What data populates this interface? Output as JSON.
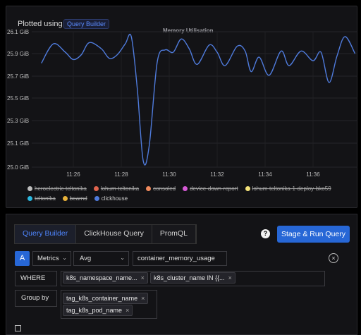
{
  "chart_panel": {
    "plotted_using_label": "Plotted using",
    "plotted_using_chip": "Query Builder"
  },
  "chart_data": {
    "type": "line",
    "title": "Memory Utilisation",
    "xlabel": "",
    "ylabel": "",
    "y_ticks": [
      "26.1 GiB",
      "25.9 GiB",
      "25.7 GiB",
      "25.5 GiB",
      "25.3 GiB",
      "25.1 GiB",
      "25.0 GiB"
    ],
    "x_ticks": [
      "11:26",
      "11:28",
      "11:30",
      "11:32",
      "11:34",
      "11:36"
    ],
    "ylim": [
      25.0,
      26.12
    ],
    "grid": true,
    "series": [
      {
        "name": "clickhouse",
        "color": "#4f7bdc",
        "points": [
          {
            "t": "11:24:40",
            "y": 25.86
          },
          {
            "t": "11:25:10",
            "y": 26.02
          },
          {
            "t": "11:25:40",
            "y": 25.95
          },
          {
            "t": "11:26:00",
            "y": 25.89
          },
          {
            "t": "11:26:20",
            "y": 25.93
          },
          {
            "t": "11:26:40",
            "y": 26.03
          },
          {
            "t": "11:27:10",
            "y": 25.98
          },
          {
            "t": "11:27:30",
            "y": 25.9
          },
          {
            "t": "11:27:50",
            "y": 25.93
          },
          {
            "t": "11:28:10",
            "y": 26.02
          },
          {
            "t": "11:28:25",
            "y": 26.08
          },
          {
            "t": "11:28:40",
            "y": 25.65
          },
          {
            "t": "11:28:55",
            "y": 25.05
          },
          {
            "t": "11:29:10",
            "y": 25.18
          },
          {
            "t": "11:29:30",
            "y": 25.87
          },
          {
            "t": "11:29:50",
            "y": 25.97
          },
          {
            "t": "11:30:10",
            "y": 25.95
          },
          {
            "t": "11:30:30",
            "y": 26.06
          },
          {
            "t": "11:30:50",
            "y": 25.98
          },
          {
            "t": "11:31:10",
            "y": 25.85
          },
          {
            "t": "11:31:40",
            "y": 26.01
          },
          {
            "t": "11:32:00",
            "y": 25.95
          },
          {
            "t": "11:32:20",
            "y": 25.84
          },
          {
            "t": "11:32:50",
            "y": 26.0
          },
          {
            "t": "11:33:10",
            "y": 25.96
          },
          {
            "t": "11:33:25",
            "y": 25.79
          },
          {
            "t": "11:33:45",
            "y": 25.91
          },
          {
            "t": "11:34:10",
            "y": 25.76
          },
          {
            "t": "11:34:40",
            "y": 25.96
          },
          {
            "t": "11:35:00",
            "y": 25.84
          },
          {
            "t": "11:35:30",
            "y": 25.96
          },
          {
            "t": "11:36:00",
            "y": 25.88
          },
          {
            "t": "11:36:20",
            "y": 25.95
          },
          {
            "t": "11:36:40",
            "y": 25.7
          },
          {
            "t": "11:37:00",
            "y": 25.92
          },
          {
            "t": "11:37:20",
            "y": 26.08
          },
          {
            "t": "11:37:45",
            "y": 25.94
          }
        ]
      }
    ],
    "legend": [
      {
        "name": "heroelectric-teltonika",
        "color": "#bdbdbd",
        "hidden": true
      },
      {
        "name": "lohum-teltonika",
        "color": "#e0644e",
        "hidden": true
      },
      {
        "name": "consoled",
        "color": "#f08a5d",
        "hidden": true
      },
      {
        "name": "device-down-report",
        "color": "#d65ad6",
        "hidden": true
      },
      {
        "name": "lohum-teltonika-1-deploy-bko59",
        "color": "#f4e27a",
        "hidden": true
      },
      {
        "name": "teltonika",
        "color": "#2bb8e0",
        "hidden": true
      },
      {
        "name": "bearnd",
        "color": "#e9b23a",
        "hidden": true
      },
      {
        "name": "clickhouse",
        "color": "#4f7bdc",
        "hidden": false
      }
    ]
  },
  "query_builder": {
    "tabs": [
      "Query Builder",
      "ClickHouse Query",
      "PromQL"
    ],
    "help_glyph": "?",
    "run_button": "Stage & Run Query",
    "query_letter": "A",
    "data_source": "Metrics",
    "aggregation": "Avg",
    "metric_name": "container_memory_usage",
    "where_label": "WHERE",
    "where_tags": [
      "k8s_namespace_name...",
      "k8s_cluster_name IN {{..."
    ],
    "group_by_label": "Group by",
    "group_by_tags": [
      "tag_k8s_container_name",
      "tag_k8s_pod_name"
    ],
    "remove_glyph": "×",
    "clear_glyph": "×"
  }
}
